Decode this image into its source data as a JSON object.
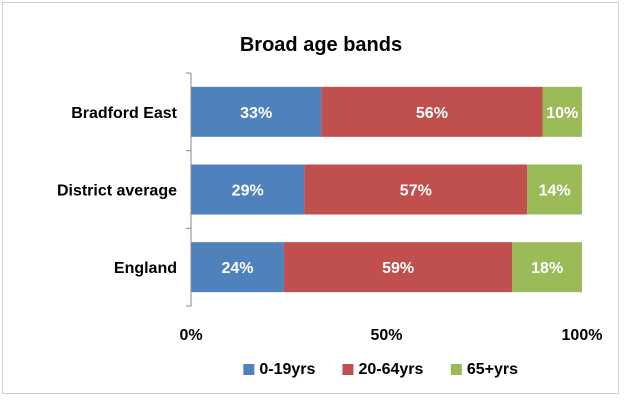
{
  "chart_data": {
    "type": "bar",
    "orientation": "horizontal",
    "stacked": "percent",
    "title": "Broad age bands",
    "categories": [
      "Bradford East",
      "District average",
      "England"
    ],
    "series": [
      {
        "name": "0-19yrs",
        "color": "#4f81bd",
        "values": [
          33,
          29,
          24
        ],
        "labels": [
          "33%",
          "29%",
          "24%"
        ]
      },
      {
        "name": "20-64yrs",
        "color": "#c0504d",
        "values": [
          56,
          57,
          59
        ],
        "labels": [
          "56%",
          "57%",
          "59%"
        ]
      },
      {
        "name": "65+yrs",
        "color": "#9bbb59",
        "values": [
          10,
          14,
          18
        ],
        "labels": [
          "10%",
          "14%",
          "18%"
        ]
      }
    ],
    "xlim": [
      0,
      100
    ],
    "xticks": [
      0,
      50,
      100
    ],
    "xtick_labels": [
      "0%",
      "50%",
      "100%"
    ],
    "grid": false,
    "legend": "bottom"
  }
}
